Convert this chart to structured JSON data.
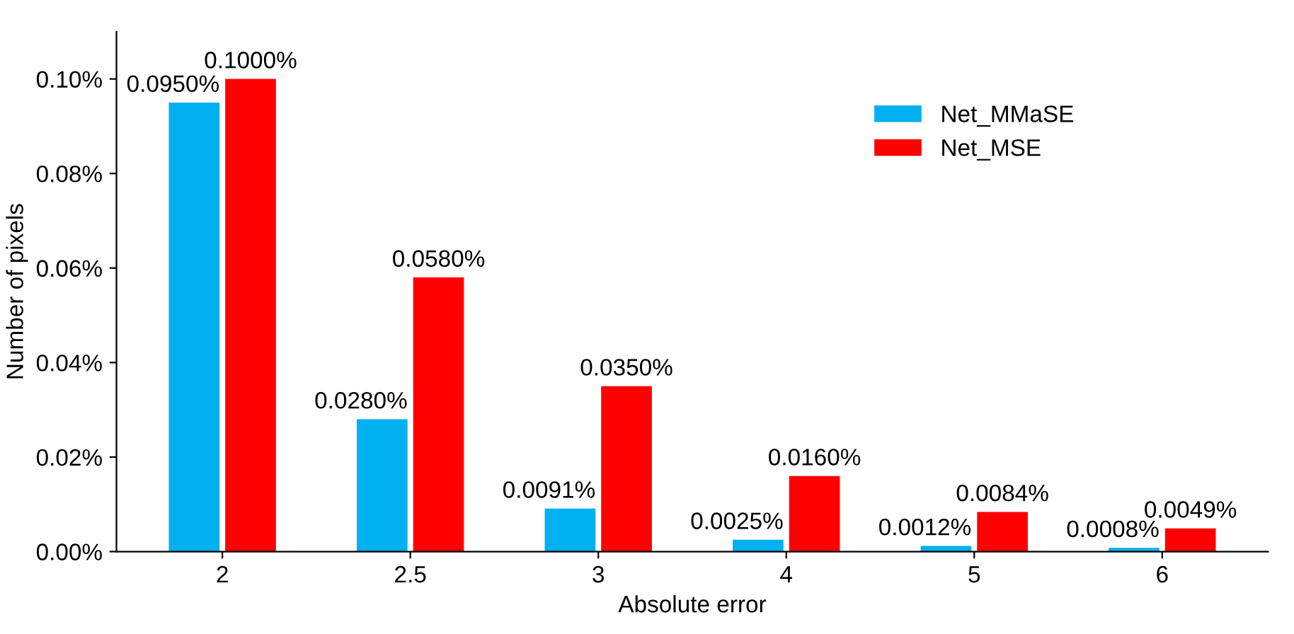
{
  "chart_data": {
    "type": "bar",
    "xlabel": "Absolute error",
    "ylabel": "Number of pixels",
    "categories": [
      "2",
      "2.5",
      "3",
      "4",
      "5",
      "6"
    ],
    "series": [
      {
        "name": "Net_MMaSE",
        "color": "#00b0f0",
        "values": [
          0.095,
          0.028,
          0.0091,
          0.0025,
          0.0012,
          0.0008
        ],
        "value_labels": [
          "0.0950%",
          "0.0280%",
          "0.0091%",
          "0.0025%",
          "0.0012%",
          "0.0008%"
        ]
      },
      {
        "name": "Net_MSE",
        "color": "#ff0000",
        "values": [
          0.1,
          0.058,
          0.035,
          0.016,
          0.0084,
          0.0049
        ],
        "value_labels": [
          "0.1000%",
          "0.0580%",
          "0.0350%",
          "0.0160%",
          "0.0084%",
          "0.0049%"
        ]
      }
    ],
    "ylim": [
      0,
      0.11
    ],
    "yticks": [
      {
        "value": 0,
        "label": "0.00%"
      },
      {
        "value": 0.02,
        "label": "0.02%"
      },
      {
        "value": 0.04,
        "label": "0.04%"
      },
      {
        "value": 0.06,
        "label": "0.06%"
      },
      {
        "value": 0.08,
        "label": "0.08%"
      },
      {
        "value": 0.1,
        "label": "0.10%"
      }
    ],
    "grid": false,
    "legend": "top right"
  }
}
